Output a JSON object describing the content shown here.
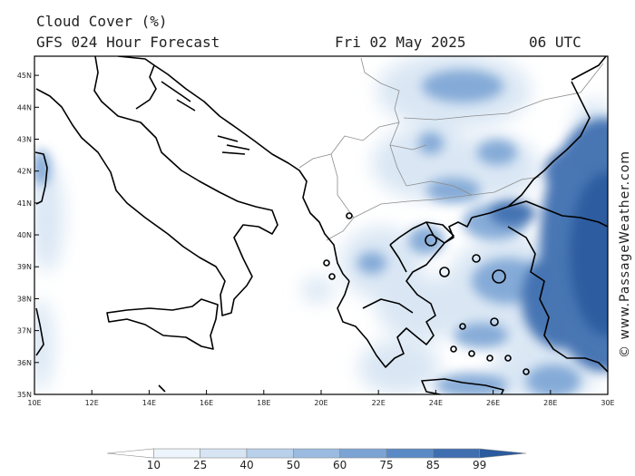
{
  "header": {
    "title": "Cloud Cover (%)",
    "subtitle": "GFS 024 Hour Forecast",
    "date": "Fri 02 May 2025",
    "time": "06 UTC"
  },
  "watermark": "© www.PassageWeather.com",
  "map": {
    "lon_range": [
      10,
      30
    ],
    "lat_range": [
      35,
      45.6
    ],
    "lon_ticks": [
      "10E",
      "12E",
      "14E",
      "16E",
      "18E",
      "20E",
      "22E",
      "24E",
      "26E",
      "28E",
      "30E"
    ],
    "lat_ticks": [
      "35N",
      "36N",
      "37N",
      "38N",
      "39N",
      "40N",
      "41N",
      "42N",
      "43N",
      "44N",
      "45N"
    ]
  },
  "legend": {
    "levels": [
      "10",
      "25",
      "40",
      "50",
      "60",
      "75",
      "85",
      "99"
    ],
    "colors": [
      "#ffffff",
      "#eef4fb",
      "#d6e4f3",
      "#b9d0ea",
      "#9bbbe0",
      "#7ba4d4",
      "#5a8ac5",
      "#3f6fb0",
      "#2b5a9e"
    ]
  },
  "colors": {
    "coastline": "#000000",
    "border": "#8c8c8c"
  }
}
